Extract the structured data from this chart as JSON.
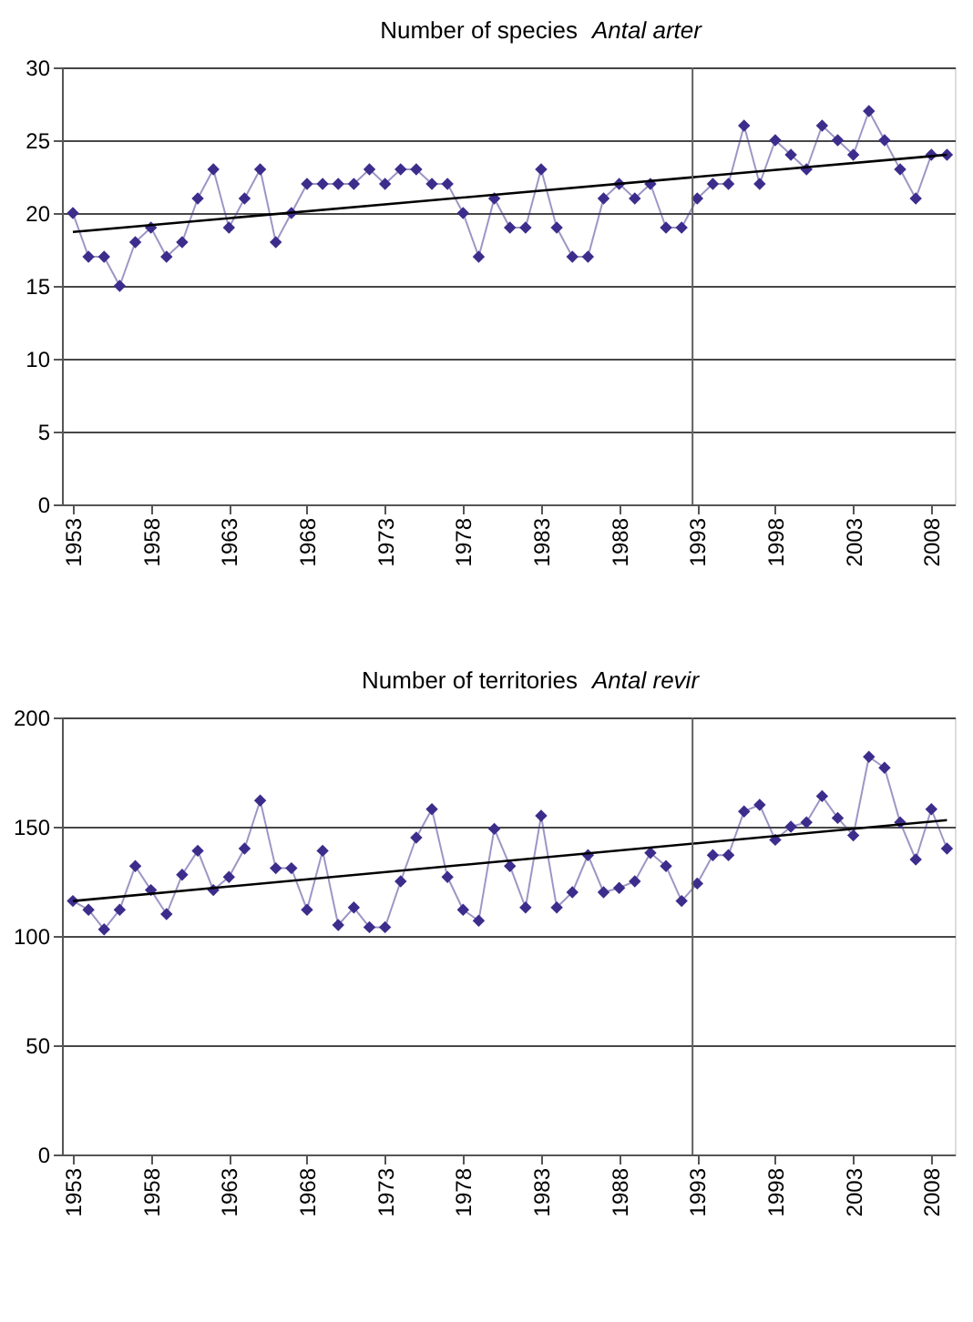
{
  "chart_data": [
    {
      "type": "line",
      "title": "Number of species",
      "subtitle": "Antal arter",
      "marker": "diamond",
      "grid": "y",
      "xlim": [
        1952.3,
        2009.5
      ],
      "xticks": [
        1953,
        1958,
        1963,
        1968,
        1973,
        1978,
        1983,
        1988,
        1993,
        1998,
        2003,
        2008
      ],
      "ylim": [
        0,
        30
      ],
      "yticks": [
        0,
        5,
        10,
        15,
        20,
        25,
        30
      ],
      "ref_lines": [
        {
          "axis": "x",
          "value": 1992.7,
          "color": "#606060"
        }
      ],
      "series": [
        {
          "color": "#3c2d8c",
          "x": [
            1953,
            1954,
            1955,
            1956,
            1957,
            1958,
            1959,
            1960,
            1961,
            1962,
            1963,
            1964,
            1965,
            1966,
            1967,
            1968,
            1969,
            1970,
            1971,
            1972,
            1973,
            1974,
            1975,
            1976,
            1977,
            1978,
            1979,
            1980,
            1981,
            1982,
            1983,
            1984,
            1985,
            1986,
            1987,
            1988,
            1989,
            1990,
            1991,
            1992,
            1993,
            1994,
            1995,
            1996,
            1997,
            1998,
            1999,
            2000,
            2001,
            2002,
            2003,
            2004,
            2005,
            2006,
            2007,
            2008,
            2009
          ],
          "values": [
            20,
            17,
            17,
            15,
            18,
            19,
            17,
            18,
            21,
            23,
            19,
            21,
            23,
            18,
            20,
            22,
            22,
            22,
            22,
            23,
            22,
            23,
            23,
            22,
            22,
            20,
            17,
            21,
            19,
            19,
            23,
            19,
            17,
            17,
            21,
            22,
            21,
            22,
            19,
            19,
            21,
            22,
            22,
            26,
            22,
            25,
            24,
            23,
            26,
            25,
            24,
            27,
            25,
            23,
            21,
            24,
            24
          ]
        },
        {
          "type": "line",
          "marker": "none",
          "color": "#000000",
          "x": [
            1953,
            2009
          ],
          "values": [
            18.7,
            24.0
          ]
        }
      ]
    },
    {
      "type": "line",
      "title": "Number of territories",
      "subtitle": "Antal revir",
      "marker": "diamond",
      "grid": "y",
      "xlim": [
        1952.3,
        2009.5
      ],
      "xticks": [
        1953,
        1958,
        1963,
        1968,
        1973,
        1978,
        1983,
        1988,
        1993,
        1998,
        2003,
        2008
      ],
      "ylim": [
        0,
        200
      ],
      "yticks": [
        0,
        50,
        100,
        150,
        200
      ],
      "ref_lines": [
        {
          "axis": "x",
          "value": 1992.7,
          "color": "#606060"
        }
      ],
      "series": [
        {
          "color": "#3c2d8c",
          "x": [
            1953,
            1954,
            1955,
            1956,
            1957,
            1958,
            1959,
            1960,
            1961,
            1962,
            1963,
            1964,
            1965,
            1966,
            1967,
            1968,
            1969,
            1970,
            1971,
            1972,
            1973,
            1974,
            1975,
            1976,
            1977,
            1978,
            1979,
            1980,
            1981,
            1982,
            1983,
            1984,
            1985,
            1986,
            1987,
            1988,
            1989,
            1990,
            1991,
            1992,
            1993,
            1994,
            1995,
            1996,
            1997,
            1998,
            1999,
            2000,
            2001,
            2002,
            2003,
            2004,
            2005,
            2006,
            2007,
            2008,
            2009
          ],
          "values": [
            116,
            112,
            103,
            112,
            132,
            121,
            110,
            128,
            139,
            121,
            127,
            140,
            162,
            131,
            131,
            112,
            139,
            105,
            113,
            104,
            104,
            125,
            145,
            158,
            127,
            112,
            107,
            149,
            132,
            113,
            155,
            113,
            120,
            137,
            120,
            122,
            125,
            138,
            132,
            116,
            124,
            137,
            137,
            157,
            160,
            144,
            150,
            152,
            164,
            154,
            146,
            182,
            177,
            152,
            135,
            158,
            140
          ]
        },
        {
          "type": "line",
          "marker": "none",
          "color": "#000000",
          "x": [
            1953,
            2009
          ],
          "values": [
            116,
            153
          ]
        }
      ]
    }
  ]
}
